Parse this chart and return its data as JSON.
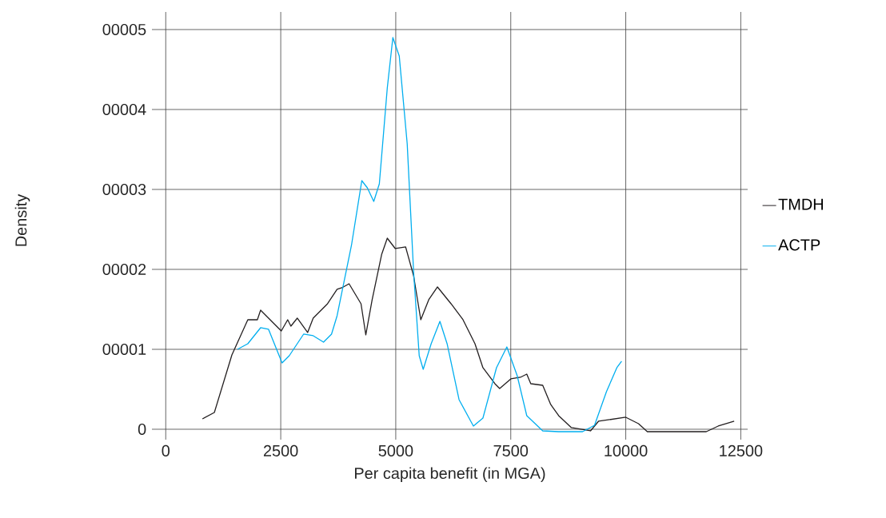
{
  "chart_data": {
    "type": "line",
    "xlabel": "Per capita benefit (in MGA)",
    "ylabel": "Density",
    "xlim": [
      -300,
      12650
    ],
    "xticks": [
      0,
      2500,
      5000,
      7500,
      10000,
      12500
    ],
    "ylim": [
      -0.13,
      5.22
    ],
    "yticks": [
      0,
      {
        "value": 1,
        "label": "00001"
      },
      {
        "value": 2,
        "label": "00002"
      },
      {
        "value": 3,
        "label": "00003"
      },
      {
        "value": 4,
        "label": "00004"
      },
      {
        "value": 5,
        "label": "00005"
      }
    ],
    "grid": true,
    "legend": "right",
    "line_style": "solid",
    "marker": "none",
    "series": [
      {
        "name": "TMDH",
        "color": "#231f20",
        "x": [
          797,
          1057,
          1438,
          1784,
          1992,
          2062,
          2512,
          2651,
          2720,
          2859,
          3084,
          3205,
          3517,
          3725,
          3829,
          3985,
          4245,
          4349,
          4487,
          4695,
          4816,
          4990,
          5215,
          5388,
          5544,
          5717,
          5907,
          6202,
          6462,
          6722,
          6895,
          7155,
          7259,
          7502,
          7710,
          7848,
          7935,
          8195,
          8368,
          8541,
          8818,
          9234,
          9407,
          10000,
          10277,
          10468,
          11750,
          12010,
          12357
        ],
        "values": [
          0.13,
          0.21,
          0.93,
          1.37,
          1.37,
          1.49,
          1.23,
          1.37,
          1.29,
          1.39,
          1.21,
          1.39,
          1.57,
          1.75,
          1.77,
          1.82,
          1.57,
          1.18,
          1.62,
          2.19,
          2.39,
          2.26,
          2.28,
          1.92,
          1.37,
          1.62,
          1.78,
          1.57,
          1.37,
          1.07,
          0.77,
          0.57,
          0.51,
          0.63,
          0.65,
          0.69,
          0.57,
          0.55,
          0.31,
          0.17,
          0.02,
          -0.02,
          0.1,
          0.15,
          0.07,
          -0.03,
          -0.03,
          0.04,
          0.1
        ]
      },
      {
        "name": "ACTP",
        "color": "#00aeef",
        "x": [
          1559,
          1784,
          2062,
          2235,
          2529,
          2685,
          2997,
          3205,
          3430,
          3604,
          3725,
          4037,
          4262,
          4383,
          4522,
          4643,
          4816,
          4937,
          5076,
          5249,
          5388,
          5510,
          5597,
          5770,
          5960,
          6116,
          6376,
          6688,
          6895,
          7190,
          7415,
          7640,
          7848,
          8195,
          8541,
          9061,
          9321,
          9580,
          9806,
          9910
        ],
        "values": [
          1.0,
          1.07,
          1.27,
          1.25,
          0.83,
          0.92,
          1.19,
          1.17,
          1.09,
          1.19,
          1.42,
          2.3,
          3.11,
          3.02,
          2.85,
          3.07,
          4.27,
          4.9,
          4.67,
          3.57,
          1.97,
          0.92,
          0.75,
          1.07,
          1.35,
          1.07,
          0.37,
          0.04,
          0.14,
          0.77,
          1.03,
          0.67,
          0.17,
          -0.02,
          -0.03,
          -0.03,
          0.05,
          0.47,
          0.77,
          0.85
        ]
      }
    ]
  }
}
